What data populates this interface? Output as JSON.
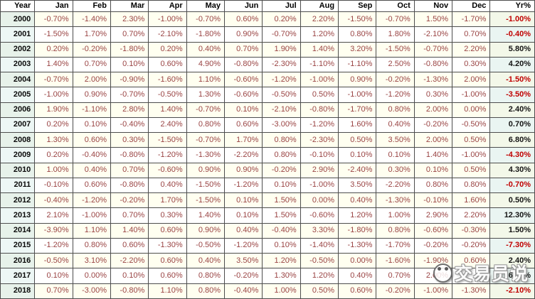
{
  "watermark": {
    "text": "交易员说"
  },
  "colors": {
    "border": "#4d4d4d",
    "month_text": "#9a4444",
    "yr_positive": "#141414",
    "yr_negative": "#c00000",
    "row_alt_bg": "#fffff0",
    "row_bg": "#ffffff",
    "year_col_bg": "#edf7f5",
    "yr_col_bg": "#eaf5f2"
  },
  "chart_data": {
    "type": "table",
    "columns": [
      "Year",
      "Jan",
      "Feb",
      "Mar",
      "Apr",
      "May",
      "Jun",
      "Jul",
      "Aug",
      "Sep",
      "Oct",
      "Nov",
      "Dec",
      "Yr%"
    ],
    "rows": [
      {
        "year": "2000",
        "months": [
          "-0.70%",
          "-1.40%",
          "2.30%",
          "-1.00%",
          "-0.70%",
          "0.60%",
          "0.20%",
          "2.20%",
          "-1.50%",
          "-0.70%",
          "1.50%",
          "-1.70%"
        ],
        "yr": "-1.00%"
      },
      {
        "year": "2001",
        "months": [
          "-1.50%",
          "1.70%",
          "0.70%",
          "-2.10%",
          "-1.80%",
          "0.90%",
          "-0.70%",
          "1.20%",
          "0.80%",
          "1.80%",
          "-2.10%",
          "0.70%"
        ],
        "yr": "-0.40%"
      },
      {
        "year": "2002",
        "months": [
          "0.20%",
          "-0.20%",
          "-1.80%",
          "0.20%",
          "0.40%",
          "0.70%",
          "1.90%",
          "1.40%",
          "3.20%",
          "-1.50%",
          "-0.70%",
          "2.20%"
        ],
        "yr": "5.80%"
      },
      {
        "year": "2003",
        "months": [
          "1.40%",
          "0.70%",
          "0.10%",
          "0.60%",
          "4.90%",
          "-0.80%",
          "-2.30%",
          "-1.10%",
          "-1.10%",
          "2.50%",
          "-0.80%",
          "0.30%"
        ],
        "yr": "4.20%"
      },
      {
        "year": "2004",
        "months": [
          "-0.70%",
          "2.00%",
          "-0.90%",
          "-1.60%",
          "1.10%",
          "-0.60%",
          "-1.20%",
          "-1.00%",
          "0.90%",
          "-0.20%",
          "-1.30%",
          "2.00%"
        ],
        "yr": "-1.50%"
      },
      {
        "year": "2005",
        "months": [
          "-1.00%",
          "0.90%",
          "-0.70%",
          "-0.50%",
          "1.30%",
          "-0.60%",
          "-0.50%",
          "0.50%",
          "-1.00%",
          "-1.20%",
          "0.30%",
          "-1.00%"
        ],
        "yr": "-3.50%"
      },
      {
        "year": "2006",
        "months": [
          "1.90%",
          "-1.10%",
          "2.80%",
          "1.40%",
          "-0.70%",
          "0.10%",
          "-2.10%",
          "-0.80%",
          "-1.70%",
          "0.80%",
          "2.00%",
          "0.00%"
        ],
        "yr": "2.40%"
      },
      {
        "year": "2007",
        "months": [
          "0.20%",
          "0.10%",
          "-0.40%",
          "2.40%",
          "0.80%",
          "0.60%",
          "-3.00%",
          "-1.20%",
          "1.60%",
          "0.40%",
          "-0.20%",
          "-0.50%"
        ],
        "yr": "0.70%"
      },
      {
        "year": "2008",
        "months": [
          "1.30%",
          "0.60%",
          "0.30%",
          "-1.50%",
          "-0.70%",
          "1.70%",
          "0.80%",
          "-2.30%",
          "0.50%",
          "3.50%",
          "2.00%",
          "0.50%"
        ],
        "yr": "6.80%"
      },
      {
        "year": "2009",
        "months": [
          "0.20%",
          "-0.40%",
          "-0.80%",
          "-1.20%",
          "-1.30%",
          "-2.20%",
          "0.80%",
          "-0.10%",
          "0.10%",
          "0.10%",
          "1.40%",
          "-1.00%"
        ],
        "yr": "-4.30%"
      },
      {
        "year": "2010",
        "months": [
          "1.00%",
          "0.40%",
          "0.70%",
          "-0.60%",
          "0.90%",
          "0.90%",
          "-0.20%",
          "2.90%",
          "-2.40%",
          "0.30%",
          "0.10%",
          "0.50%"
        ],
        "yr": "4.30%"
      },
      {
        "year": "2011",
        "months": [
          "-0.10%",
          "0.60%",
          "-0.80%",
          "0.40%",
          "-1.50%",
          "-1.20%",
          "0.10%",
          "-1.00%",
          "3.50%",
          "-2.20%",
          "0.80%",
          "0.80%"
        ],
        "yr": "-0.70%"
      },
      {
        "year": "2012",
        "months": [
          "-0.40%",
          "-1.20%",
          "-0.20%",
          "1.70%",
          "-1.50%",
          "0.10%",
          "1.50%",
          "0.00%",
          "0.40%",
          "-1.30%",
          "-0.10%",
          "1.60%"
        ],
        "yr": "0.50%"
      },
      {
        "year": "2013",
        "months": [
          "2.10%",
          "-1.00%",
          "0.70%",
          "0.30%",
          "1.40%",
          "0.10%",
          "1.50%",
          "-0.60%",
          "1.20%",
          "1.00%",
          "2.90%",
          "2.20%"
        ],
        "yr": "12.30%"
      },
      {
        "year": "2014",
        "months": [
          "-3.90%",
          "1.10%",
          "1.40%",
          "0.60%",
          "0.90%",
          "0.40%",
          "-0.40%",
          "3.30%",
          "-1.80%",
          "0.80%",
          "-0.60%",
          "-0.30%"
        ],
        "yr": "1.50%"
      },
      {
        "year": "2015",
        "months": [
          "-1.20%",
          "0.80%",
          "0.60%",
          "-1.30%",
          "-0.50%",
          "-1.20%",
          "0.10%",
          "-1.40%",
          "-1.30%",
          "-1.70%",
          "-0.20%",
          "-0.20%"
        ],
        "yr": "-7.30%"
      },
      {
        "year": "2016",
        "months": [
          "-0.50%",
          "3.10%",
          "-2.20%",
          "0.60%",
          "0.40%",
          "3.50%",
          "1.20%",
          "-0.50%",
          "0.00%",
          "-1.60%",
          "-1.90%",
          "0.60%"
        ],
        "yr": "2.40%"
      },
      {
        "year": "2017",
        "months": [
          "0.10%",
          "0.00%",
          "0.10%",
          "0.60%",
          "0.80%",
          "-0.20%",
          "1.30%",
          "1.20%",
          "0.40%",
          "0.70%",
          "2.00%",
          ""
        ],
        "yr": "6.10%"
      },
      {
        "year": "2018",
        "months": [
          "0.70%",
          "-3.00%",
          "-0.80%",
          "1.10%",
          "0.80%",
          "-0.40%",
          "1.00%",
          "0.50%",
          "0.60%",
          "-0.20%",
          "-1.00%",
          "-1.30%"
        ],
        "yr": "-2.10%"
      }
    ]
  }
}
